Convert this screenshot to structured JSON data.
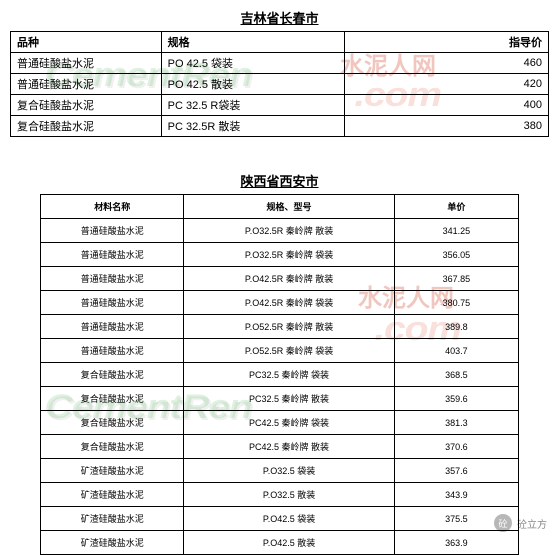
{
  "table1": {
    "title": "吉林省长春市",
    "headers": [
      "品种",
      "规格",
      "指导价"
    ],
    "rows": [
      [
        "普通硅酸盐水泥",
        "PO 42.5 袋装",
        "460"
      ],
      [
        "普通硅酸盐水泥",
        "PO 42.5 散装",
        "420"
      ],
      [
        "复合硅酸盐水泥",
        "PC 32.5 R袋装",
        "400"
      ],
      [
        "复合硅酸盐水泥",
        "PC 32.5R 散装",
        "380"
      ]
    ]
  },
  "table2": {
    "title": "陕西省西安市",
    "headers": [
      "材料名称",
      "规格、型号",
      "单价"
    ],
    "rows": [
      [
        "普通硅酸盐水泥",
        "P.O32.5R 秦岭牌 散装",
        "341.25"
      ],
      [
        "普通硅酸盐水泥",
        "P.O32.5R 秦岭牌 袋装",
        "356.05"
      ],
      [
        "普通硅酸盐水泥",
        "P.O42.5R 秦岭牌 散装",
        "367.85"
      ],
      [
        "普通硅酸盐水泥",
        "P.O42.5R 秦岭牌 袋装",
        "380.75"
      ],
      [
        "普通硅酸盐水泥",
        "P.O52.5R 秦岭牌 散装",
        "389.8"
      ],
      [
        "普通硅酸盐水泥",
        "P.O52.5R 秦岭牌 袋装",
        "403.7"
      ],
      [
        "复合硅酸盐水泥",
        "PC32.5 秦岭牌 袋装",
        "368.5"
      ],
      [
        "复合硅酸盐水泥",
        "PC32.5 秦岭牌 散装",
        "359.6"
      ],
      [
        "复合硅酸盐水泥",
        "PC42.5 秦岭牌 袋装",
        "381.3"
      ],
      [
        "复合硅酸盐水泥",
        "PC42.5 秦岭牌 散装",
        "370.6"
      ],
      [
        "矿渣硅酸盐水泥",
        "P.O32.5 袋装",
        "357.6"
      ],
      [
        "矿渣硅酸盐水泥",
        "P.O32.5 散装",
        "343.9"
      ],
      [
        "矿渣硅酸盐水泥",
        "P.O42.5 袋装",
        "375.5"
      ],
      [
        "矿渣硅酸盐水泥",
        "P.O42.5 散装",
        "363.9"
      ]
    ]
  },
  "watermarks": {
    "brand1": "CementRen",
    "brand2": ".com",
    "chinese": "水泥人网"
  },
  "footer": {
    "label": "砼立方"
  }
}
